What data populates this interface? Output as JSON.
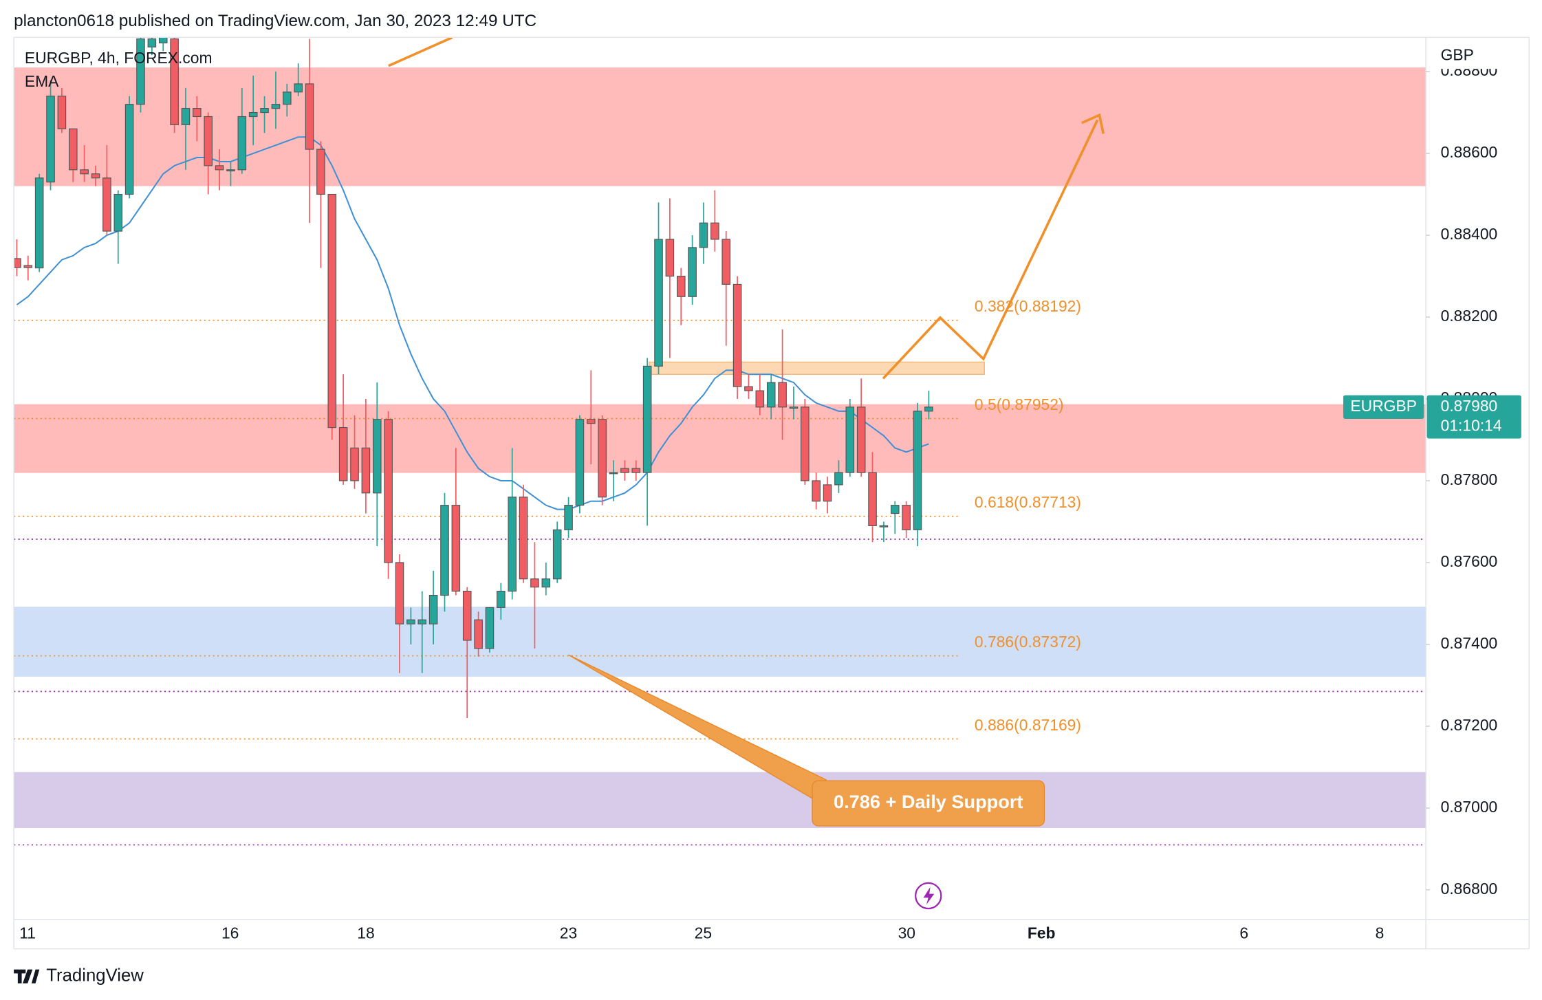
{
  "header": "plancton0618 published on TradingView.com, Jan 30, 2023 12:49 UTC",
  "brand": "TradingView",
  "chart_data": {
    "type": "candlestick",
    "legend": "EURGBP, 4h, FOREX.com",
    "currency": "GBP",
    "up_color": "#26a69a",
    "down_color": "#f05d63",
    "open": [
      0.88343,
      0.88326,
      0.8832,
      0.8853,
      0.8874,
      0.8866,
      0.8856,
      0.8855,
      0.8854,
      0.8841,
      0.885,
      0.8872,
      0.8886,
      0.8887,
      0.8888,
      0.8867,
      0.8871,
      0.8869,
      0.8857,
      0.8856,
      0.8856,
      0.8869,
      0.887,
      0.8871,
      0.8872,
      0.8875,
      0.8877,
      0.8861,
      0.885,
      0.8793,
      0.8788,
      0.8788,
      0.8777,
      0.8795,
      0.876,
      0.8745,
      0.8745,
      0.8745,
      0.8752,
      0.8774,
      0.8753,
      0.8746,
      0.8739,
      0.8749,
      0.8753,
      0.8776,
      0.8756,
      0.8754,
      0.8756,
      0.8768,
      0.8774,
      0.8795,
      0.8795,
      0.8782,
      0.8783,
      0.8783,
      0.8782,
      0.8808,
      0.8839,
      0.883,
      0.8825,
      0.8837,
      0.8843,
      0.8839,
      0.8828,
      0.8803,
      0.8802,
      0.8798,
      0.8804,
      0.8798,
      0.8798,
      0.878,
      0.8779,
      0.8779,
      0.8782,
      0.8798,
      0.8782,
      0.8769,
      0.8772,
      0.8774,
      0.8768,
      0.8797
    ],
    "high": [
      0.8839,
      0.8835,
      0.8855,
      0.8878,
      0.8876,
      0.8866,
      0.8862,
      0.8857,
      0.8862,
      0.8851,
      0.8874,
      0.889,
      0.889,
      0.889,
      0.889,
      0.8876,
      0.8874,
      0.887,
      0.8861,
      0.8858,
      0.8876,
      0.8879,
      0.8874,
      0.888,
      0.8877,
      0.8882,
      0.8888,
      0.8863,
      0.885,
      0.8806,
      0.8796,
      0.88,
      0.8804,
      0.8797,
      0.8762,
      0.8749,
      0.8753,
      0.8758,
      0.8777,
      0.8788,
      0.8754,
      0.8748,
      0.8749,
      0.8755,
      0.8788,
      0.8779,
      0.8765,
      0.876,
      0.877,
      0.8776,
      0.8796,
      0.8807,
      0.8796,
      0.8785,
      0.8785,
      0.8785,
      0.881,
      0.8848,
      0.8849,
      0.8832,
      0.884,
      0.8848,
      0.8851,
      0.8841,
      0.883,
      0.8806,
      0.8806,
      0.8806,
      0.8817,
      0.8803,
      0.88,
      0.8782,
      0.8781,
      0.8785,
      0.88,
      0.8805,
      0.8787,
      0.877,
      0.8775,
      0.8775,
      0.8799,
      0.8802
    ],
    "low": [
      0.883,
      0.8829,
      0.8831,
      0.8851,
      0.8865,
      0.8853,
      0.8853,
      0.8852,
      0.884,
      0.8833,
      0.8849,
      0.887,
      0.8884,
      0.8885,
      0.8865,
      0.8856,
      0.8863,
      0.885,
      0.8851,
      0.8852,
      0.8855,
      0.8862,
      0.8865,
      0.8866,
      0.8869,
      0.8874,
      0.8843,
      0.8832,
      0.879,
      0.8779,
      0.8778,
      0.8772,
      0.8764,
      0.8756,
      0.8733,
      0.874,
      0.8733,
      0.874,
      0.8748,
      0.8752,
      0.8722,
      0.8737,
      0.8738,
      0.8746,
      0.8751,
      0.8755,
      0.8739,
      0.8752,
      0.8755,
      0.8766,
      0.8772,
      0.8784,
      0.8774,
      0.8775,
      0.878,
      0.878,
      0.8769,
      0.8806,
      0.881,
      0.8818,
      0.8823,
      0.8833,
      0.8836,
      0.8813,
      0.88,
      0.88,
      0.8796,
      0.8795,
      0.879,
      0.8795,
      0.8779,
      0.8773,
      0.8772,
      0.8777,
      0.8781,
      0.8781,
      0.8765,
      0.8765,
      0.8767,
      0.8766,
      0.8764,
      0.8795
    ],
    "close": [
      0.88321,
      0.88321,
      0.8854,
      0.8874,
      0.8866,
      0.8856,
      0.8855,
      0.8854,
      0.8841,
      0.885,
      0.8872,
      0.8888,
      0.8888,
      0.8889,
      0.8867,
      0.8871,
      0.8869,
      0.8857,
      0.8856,
      0.8856,
      0.8869,
      0.887,
      0.8871,
      0.8872,
      0.8875,
      0.8877,
      0.8861,
      0.885,
      0.8793,
      0.878,
      0.878,
      0.8777,
      0.8795,
      0.876,
      0.8745,
      0.8746,
      0.8746,
      0.8752,
      0.8774,
      0.8753,
      0.8741,
      0.8739,
      0.8749,
      0.8753,
      0.8776,
      0.8756,
      0.8754,
      0.8756,
      0.8768,
      0.8774,
      0.8795,
      0.8794,
      0.8776,
      0.8782,
      0.8782,
      0.8782,
      0.8808,
      0.8839,
      0.883,
      0.8825,
      0.8837,
      0.8843,
      0.8839,
      0.8828,
      0.8803,
      0.8802,
      0.8798,
      0.8804,
      0.8798,
      0.8798,
      0.878,
      0.8775,
      0.8775,
      0.8782,
      0.8798,
      0.8782,
      0.8769,
      0.8769,
      0.8774,
      0.8768,
      0.8797,
      0.8798
    ],
    "ema": {
      "name": "EMA",
      "color": "#3d8fd6",
      "values": [
        0.8823,
        0.8825,
        0.8828,
        0.8831,
        0.8834,
        0.8835,
        0.8837,
        0.8838,
        0.884,
        0.8841,
        0.8843,
        0.8847,
        0.8851,
        0.8855,
        0.8857,
        0.8858,
        0.8859,
        0.8859,
        0.8858,
        0.8858,
        0.8859,
        0.886,
        0.8861,
        0.8862,
        0.8863,
        0.8864,
        0.8864,
        0.8862,
        0.8857,
        0.8851,
        0.8844,
        0.8839,
        0.8834,
        0.8827,
        0.8818,
        0.8811,
        0.8805,
        0.88,
        0.8797,
        0.8792,
        0.8787,
        0.8783,
        0.8781,
        0.878,
        0.878,
        0.8778,
        0.8776,
        0.8774,
        0.8773,
        0.8773,
        0.8774,
        0.8775,
        0.8775,
        0.8776,
        0.8777,
        0.8779,
        0.8782,
        0.8787,
        0.8791,
        0.8794,
        0.8798,
        0.8801,
        0.8805,
        0.8807,
        0.8807,
        0.8806,
        0.8806,
        0.8806,
        0.8805,
        0.8804,
        0.8801,
        0.8799,
        0.8798,
        0.8797,
        0.8797,
        0.8795,
        0.8793,
        0.8791,
        0.8788,
        0.8787,
        0.8788,
        0.8789
      ]
    },
    "zones": [
      {
        "from": 0.8852,
        "to": 0.8881,
        "color": "#ffbaba"
      },
      {
        "from": 0.87819,
        "to": 0.87987,
        "color": "#ffbaba"
      },
      {
        "from": 0.87321,
        "to": 0.87492,
        "color": "#cfdff7"
      },
      {
        "from": 0.86951,
        "to": 0.87088,
        "color": "#d8cbea"
      },
      {
        "from": 0.8806,
        "to": 0.8809,
        "color": "#fcd9b4"
      }
    ],
    "fib": [
      {
        "value": 0.88192,
        "label": "0.382(0.88192)"
      },
      {
        "value": 0.87952,
        "label": "0.5(0.87952)"
      },
      {
        "value": 0.87713,
        "label": "0.618(0.87713)"
      },
      {
        "value": 0.87372,
        "label": "0.786(0.87372)"
      },
      {
        "value": 0.87169,
        "label": "0.886(0.87169)"
      }
    ],
    "fib_color": "#f0902a",
    "levels": [
      0.87657,
      0.87285,
      0.8691
    ],
    "level_color": "#9c27b0",
    "annotation": "0.786 + Daily Support",
    "last_price": {
      "symbol": "EURGBP",
      "value": 0.8798,
      "label": "0.87980",
      "countdown": "01:10:14"
    },
    "xticks": [
      "11",
      "16",
      "18",
      "23",
      "25",
      "30",
      "Feb",
      "6",
      "8"
    ],
    "ylim": [
      0.867447,
      0.888836
    ],
    "yticks": [
      {
        "value": 0.888,
        "label": "0.88800"
      },
      {
        "value": 0.886,
        "label": "0.88600"
      },
      {
        "value": 0.884,
        "label": "0.88400"
      },
      {
        "value": 0.882,
        "label": "0.88200"
      },
      {
        "value": 0.88,
        "label": "0.88000"
      },
      {
        "value": 0.878,
        "label": "0.87800"
      },
      {
        "value": 0.876,
        "label": "0.87600"
      },
      {
        "value": 0.874,
        "label": "0.87400"
      },
      {
        "value": 0.872,
        "label": "0.87200"
      },
      {
        "value": 0.87,
        "label": "0.87000"
      },
      {
        "value": 0.868,
        "label": "0.86800"
      }
    ]
  }
}
